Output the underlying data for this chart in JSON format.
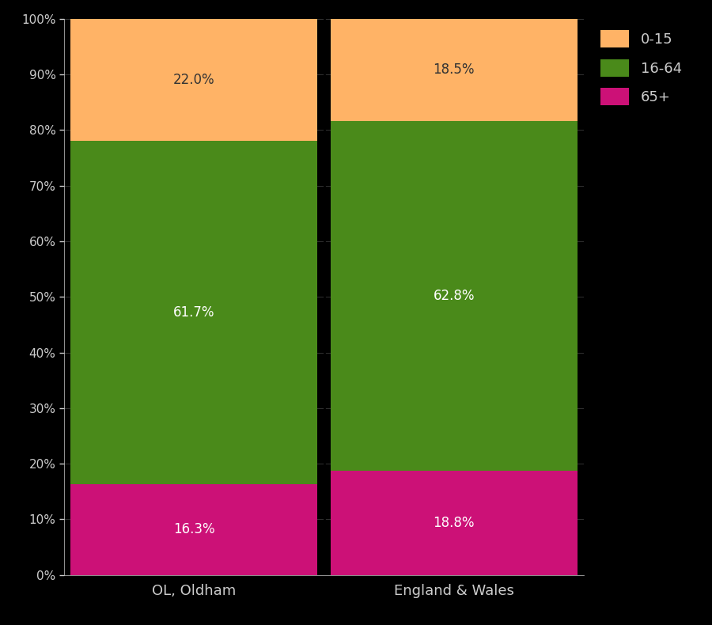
{
  "categories": [
    "OL, Oldham",
    "England & Wales"
  ],
  "segments": {
    "65+": [
      16.3,
      18.8
    ],
    "16-64": [
      61.7,
      62.8
    ],
    "0-15": [
      22.0,
      18.5
    ]
  },
  "colors": {
    "65+": "#cc1177",
    "16-64": "#4a8a1a",
    "0-15": "#ffb366"
  },
  "label_colors": {
    "65+": "white",
    "16-64": "white",
    "0-15": "#333333"
  },
  "background_color": "#000000",
  "plot_bg_color": "#000000",
  "text_color": "#cccccc",
  "grid_color": "#444444",
  "ytick_labels": [
    "0%",
    "10%",
    "20%",
    "30%",
    "40%",
    "50%",
    "60%",
    "70%",
    "80%",
    "90%",
    "100%"
  ],
  "ytick_values": [
    0,
    10,
    20,
    30,
    40,
    50,
    60,
    70,
    80,
    90,
    100
  ],
  "bar_width": 0.95,
  "figsize": [
    9.0,
    7.9
  ],
  "dpi": 100
}
